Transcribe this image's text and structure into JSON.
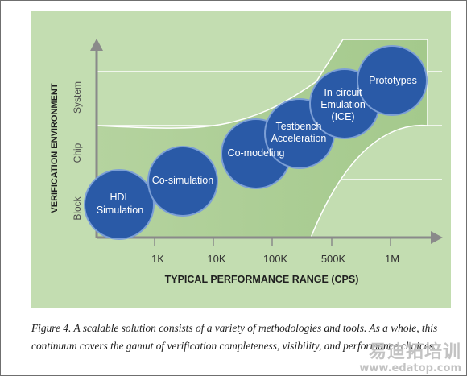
{
  "diagram": {
    "y_axis_title": "VERIFICATION ENVIRONMENT",
    "y_tiers": [
      "Block",
      "Chip",
      "System"
    ],
    "x_ticks": [
      "1K",
      "10K",
      "100K",
      "500K",
      "1M"
    ],
    "x_axis_title": "TYPICAL PERFORMANCE RANGE (CPS)",
    "methods": [
      {
        "line1": "HDL",
        "line2": "Simulation",
        "line3": ""
      },
      {
        "line1": "Co-simulation",
        "line2": "",
        "line3": ""
      },
      {
        "line1": "Co-modeling",
        "line2": "",
        "line3": ""
      },
      {
        "line1": "Testbench",
        "line2": "Acceleration",
        "line3": ""
      },
      {
        "line1": "In-circuit",
        "line2": "Emulation",
        "line3": "(ICE)"
      },
      {
        "line1": "Prototypes",
        "line2": "",
        "line3": ""
      }
    ],
    "colors": {
      "background_panel": "#c3ddb1",
      "region": "#a9cb92",
      "circle": "#2a5aa7",
      "circle_edge": "#7c9fd6",
      "axis": "#8a8a8a",
      "gridline": "#ffffff"
    }
  },
  "caption": "Figure 4. A scalable solution consists of a variety of methodologies and tools. As a whole, this continuum covers the gamut of verification completeness, visibility, and performance choices.",
  "watermark": {
    "brand": "易迪拓培训",
    "url": "www.edatop.com"
  }
}
